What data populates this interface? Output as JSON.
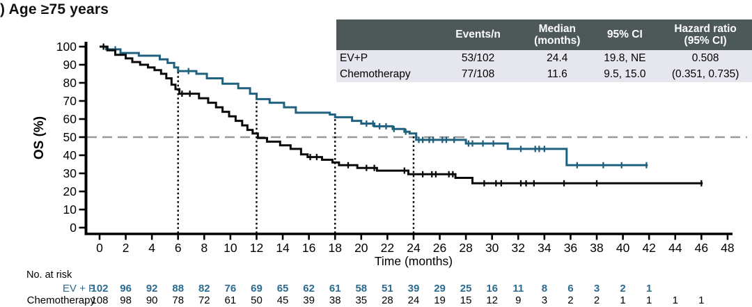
{
  "title": ") Age ≥75 years",
  "colors": {
    "accent_blue": "#20617f",
    "risk_blue": "#2a6b91",
    "black": "#0a0a0a",
    "table_header_bg": "#4d5858",
    "table_row_bg": "#e5e6ee",
    "median_dash": "#999999"
  },
  "summary_table": {
    "headers": [
      "",
      "Events/n",
      "Median\n(months)",
      "95% CI",
      "Hazard ratio\n(95% CI)"
    ],
    "rows": [
      {
        "name": "EV+P",
        "events_n": "53/102",
        "median": "24.4",
        "ci": "19.8, NE",
        "hr": "0.508"
      },
      {
        "name": "Chemotherapy",
        "events_n": "77/108",
        "median": "11.6",
        "ci": "9.5, 15.0",
        "hr": "(0.351, 0.735)"
      }
    ]
  },
  "chart_data": {
    "type": "line",
    "subtype": "kaplan-meier-step",
    "title": ") Age ≥75 years",
    "xlabel": "Time (months)",
    "ylabel": "OS (%)",
    "xlim": [
      0,
      48
    ],
    "ylim": [
      0,
      100
    ],
    "xticks": [
      0,
      2,
      4,
      6,
      8,
      10,
      12,
      14,
      16,
      18,
      20,
      22,
      24,
      26,
      28,
      30,
      32,
      34,
      36,
      38,
      40,
      42,
      44,
      46,
      48
    ],
    "yticks": [
      0,
      10,
      20,
      30,
      40,
      50,
      60,
      70,
      80,
      90,
      100
    ],
    "grid": false,
    "median_reference_line_y": 50,
    "dotted_reference_lines": [
      [
        6,
        86.5
      ],
      [
        12,
        71
      ],
      [
        18,
        61
      ],
      [
        24,
        51.5
      ]
    ],
    "series": [
      {
        "name": "EV+P",
        "color": "#20617f",
        "end_time": 41.9,
        "steps": [
          [
            0,
            100
          ],
          [
            0.5,
            98.5
          ],
          [
            1.6,
            96.5
          ],
          [
            3.0,
            95
          ],
          [
            4.6,
            93
          ],
          [
            5.2,
            91
          ],
          [
            5.7,
            88.5
          ],
          [
            6.0,
            86.5
          ],
          [
            7.4,
            85
          ],
          [
            8.2,
            82.5
          ],
          [
            9.4,
            79.5
          ],
          [
            10.6,
            77
          ],
          [
            11.5,
            74
          ],
          [
            12.0,
            71
          ],
          [
            13.0,
            69
          ],
          [
            14.1,
            66.5
          ],
          [
            15.0,
            63.5
          ],
          [
            17.6,
            62.5
          ],
          [
            18.0,
            61
          ],
          [
            19.3,
            59
          ],
          [
            20.0,
            57.5
          ],
          [
            21.0,
            56
          ],
          [
            22.4,
            54.5
          ],
          [
            23.3,
            53
          ],
          [
            23.7,
            52
          ],
          [
            24.2,
            48.5
          ],
          [
            28.0,
            46.5
          ],
          [
            31.2,
            43.5
          ],
          [
            35.7,
            34.5
          ]
        ],
        "censor_times": [
          1.2,
          6.8,
          20.4,
          20.9,
          21.4,
          21.9,
          22.5,
          23.4,
          24.4,
          24.7,
          25.2,
          25.5,
          26.2,
          26.5,
          27.1,
          28.2,
          28.5,
          29.3,
          30.1,
          32.2,
          33.3,
          33.6,
          34.0,
          36.5,
          38.5,
          39.9,
          41.8
        ]
      },
      {
        "name": "Chemotherapy",
        "color": "#0a0a0a",
        "end_time": 46.1,
        "steps": [
          [
            0,
            100
          ],
          [
            0.6,
            98
          ],
          [
            1.2,
            95.5
          ],
          [
            2.0,
            93.5
          ],
          [
            2.5,
            91.5
          ],
          [
            3.1,
            90
          ],
          [
            3.7,
            88.5
          ],
          [
            4.2,
            87
          ],
          [
            4.7,
            85
          ],
          [
            5.1,
            82.5
          ],
          [
            5.5,
            79
          ],
          [
            5.8,
            76.5
          ],
          [
            6.1,
            74
          ],
          [
            7.6,
            71.5
          ],
          [
            8.3,
            69
          ],
          [
            8.9,
            66.5
          ],
          [
            9.4,
            64
          ],
          [
            9.9,
            61.5
          ],
          [
            10.4,
            59
          ],
          [
            10.9,
            56.5
          ],
          [
            11.3,
            54
          ],
          [
            11.7,
            52
          ],
          [
            12.1,
            49.5
          ],
          [
            12.8,
            47.5
          ],
          [
            13.8,
            45.5
          ],
          [
            14.6,
            43.5
          ],
          [
            15.4,
            40.5
          ],
          [
            15.9,
            39
          ],
          [
            17.0,
            37.5
          ],
          [
            17.8,
            36
          ],
          [
            18.3,
            34.5
          ],
          [
            19.7,
            33
          ],
          [
            21.2,
            31.5
          ],
          [
            23.6,
            29.5
          ],
          [
            27.2,
            27.5
          ],
          [
            28.5,
            24.5
          ]
        ],
        "censor_times": [
          0.3,
          6.3,
          6.9,
          16.1,
          16.6,
          19.0,
          20.4,
          21.0,
          23.3,
          24.7,
          25.4,
          25.7,
          26.7,
          27.0,
          29.4,
          30.3,
          30.7,
          32.2,
          32.6,
          33.2,
          35.5,
          38.0,
          46.0
        ]
      }
    ]
  },
  "risk_table": {
    "caption": "No. at risk",
    "times": [
      0,
      2,
      4,
      6,
      8,
      10,
      12,
      14,
      16,
      18,
      20,
      22,
      24,
      26,
      28,
      30,
      32,
      34,
      36,
      38,
      40,
      42,
      44,
      46
    ],
    "rows": [
      {
        "name": "EV + P",
        "bold": true,
        "color": "#2a6b91",
        "values": [
          102,
          96,
          92,
          88,
          82,
          76,
          69,
          65,
          62,
          61,
          58,
          51,
          39,
          29,
          25,
          16,
          11,
          8,
          6,
          3,
          2,
          1
        ]
      },
      {
        "name": "Chemotherapy",
        "bold": false,
        "color": "#000000",
        "values": [
          108,
          98,
          90,
          78,
          72,
          61,
          50,
          45,
          39,
          38,
          35,
          28,
          24,
          19,
          15,
          12,
          9,
          3,
          2,
          2,
          1,
          1,
          1,
          1
        ]
      }
    ]
  }
}
